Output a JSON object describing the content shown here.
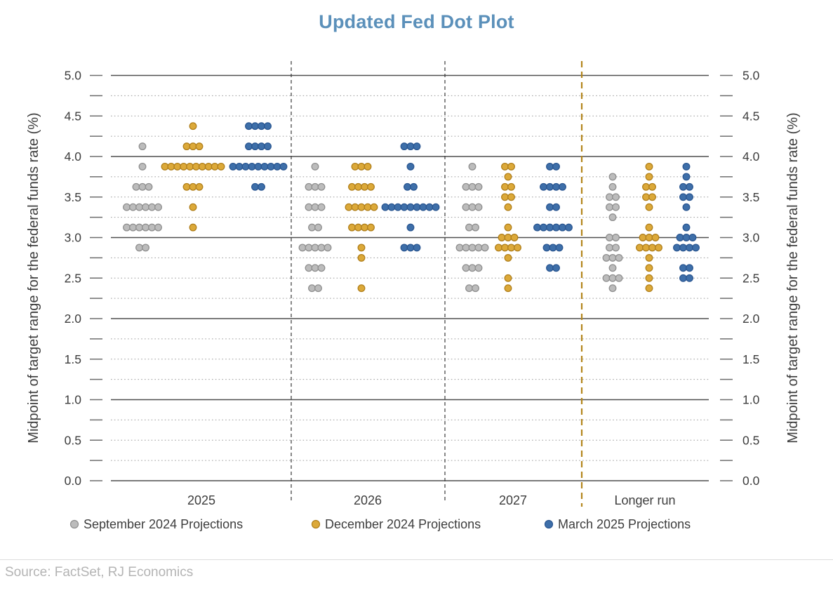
{
  "source": "Source: FactSet, RJ Economics",
  "colors": {
    "title": "#5b90ba",
    "axis_text": "#3d3d3d",
    "tick": "#6e6e6e",
    "source_text": "#b4b4b4",
    "source_rule": "#dcdcdc"
  },
  "chart_data": {
    "type": "scatter",
    "subtype": "fed-dot-plot",
    "title": "Updated Fed Dot Plot",
    "ylabel": "Midpoint of target range for the federal funds rate (%)",
    "ylim": [
      0.0,
      5.0
    ],
    "ytick_label_step": 0.5,
    "ytick_minor_step": 0.25,
    "ytick_labels": [
      "5.0",
      "4.5",
      "4.0",
      "3.5",
      "3.0",
      "2.5",
      "2.0",
      "1.5",
      "1.0",
      "0.5",
      "0.0"
    ],
    "grid": {
      "solid_lines_at_integers": true,
      "dotted_lines_at_quarter_steps": true
    },
    "grid_colors": {
      "major": "#4f4f4f",
      "minor": "#9c9c9c"
    },
    "separator_colors": {
      "year": "#3a3a3a",
      "longer_run": "#b3861c"
    },
    "legend_position": "bottom",
    "categories": [
      "2025",
      "2026",
      "2027",
      "Longer run"
    ],
    "series": [
      {
        "name": "September 2024 Projections",
        "color": "#bcbcbc",
        "stroke": "#8f8f8f",
        "dots": {
          "2025": {
            "4.125": 1,
            "3.875": 1,
            "3.625": 3,
            "3.375": 6,
            "3.125": 6,
            "2.875": 2
          },
          "2026": {
            "3.875": 1,
            "3.625": 3,
            "3.375": 3,
            "3.125": 2,
            "2.875": 5,
            "2.625": 3,
            "2.375": 2
          },
          "2027": {
            "3.875": 1,
            "3.625": 3,
            "3.375": 3,
            "3.125": 2,
            "2.875": 5,
            "2.625": 3,
            "2.375": 2
          },
          "Longer run": {
            "3.75": 1,
            "3.625": 1,
            "3.5": 2,
            "3.375": 2,
            "3.25": 1,
            "3.0": 2,
            "2.875": 2,
            "2.75": 3,
            "2.625": 1,
            "2.5": 3,
            "2.375": 1
          }
        }
      },
      {
        "name": "December 2024 Projections",
        "color": "#dca939",
        "stroke": "#b07f1b",
        "dots": {
          "2025": {
            "4.375": 1,
            "4.125": 3,
            "3.875": 10,
            "3.625": 3,
            "3.375": 1,
            "3.125": 1
          },
          "2026": {
            "3.875": 3,
            "3.625": 4,
            "3.375": 5,
            "3.125": 4,
            "2.875": 1,
            "2.75": 1,
            "2.375": 1
          },
          "2027": {
            "3.875": 2,
            "3.75": 1,
            "3.625": 2,
            "3.5": 2,
            "3.375": 1,
            "3.125": 1,
            "3.0": 3,
            "2.875": 4,
            "2.75": 1,
            "2.5": 1,
            "2.375": 1
          },
          "Longer run": {
            "3.875": 1,
            "3.75": 1,
            "3.625": 2,
            "3.5": 2,
            "3.375": 1,
            "3.125": 1,
            "3.0": 3,
            "2.875": 4,
            "2.75": 1,
            "2.625": 1,
            "2.5": 1,
            "2.375": 1
          }
        }
      },
      {
        "name": "March 2025 Projections",
        "color": "#3e6fa9",
        "stroke": "#2a5691",
        "dots": {
          "2025": {
            "4.375": 4,
            "4.125": 4,
            "3.875": 9,
            "3.625": 2
          },
          "2026": {
            "4.125": 3,
            "3.875": 1,
            "3.625": 2,
            "3.375": 9,
            "3.125": 1,
            "2.875": 3
          },
          "2027": {
            "3.875": 2,
            "3.625": 4,
            "3.375": 2,
            "3.125": 6,
            "2.875": 3,
            "2.625": 2
          },
          "Longer run": {
            "3.875": 1,
            "3.75": 1,
            "3.625": 2,
            "3.5": 2,
            "3.375": 1,
            "3.125": 1,
            "3.0": 3,
            "2.875": 4,
            "2.625": 2,
            "2.5": 2
          }
        }
      }
    ]
  }
}
